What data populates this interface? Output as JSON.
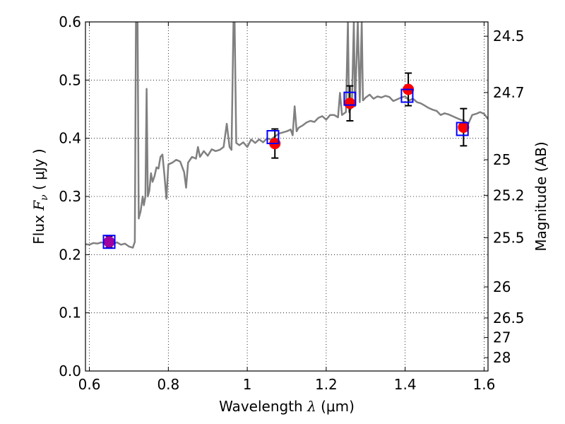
{
  "chart_data": {
    "type": "line",
    "xlabel_prefix": "Wavelength ",
    "xlabel_math": "λ",
    "xlabel_units": " (μm)",
    "ylabel_prefix": "Flux ",
    "ylabel_math": "F",
    "ylabel_sub": "ν",
    "ylabel_units": " ( μJy )",
    "y2label": "Magnitude (AB)",
    "xlim": [
      0.59,
      1.61
    ],
    "ylim": [
      0.0,
      0.6
    ],
    "xticks": [
      0.6,
      0.8,
      1.0,
      1.2,
      1.4,
      1.6
    ],
    "xtick_labels": [
      "0.6",
      "0.8",
      "1",
      "1.2",
      "1.4",
      "1.6"
    ],
    "yticks": [
      0.0,
      0.1,
      0.2,
      0.3,
      0.4,
      0.5,
      0.6
    ],
    "ytick_labels": [
      "0.0",
      "0.1",
      "0.2",
      "0.3",
      "0.4",
      "0.5",
      "0.6"
    ],
    "mag_ticks": [
      24.5,
      24.7,
      25,
      25.2,
      25.5,
      26,
      26.5,
      27,
      28
    ],
    "mag_tick_labels": [
      "24.5",
      "24.7",
      "25",
      "25.2",
      "25.5",
      "26",
      "26.5",
      "27",
      "28"
    ],
    "grid": true,
    "model_color": "#808080",
    "model_spectrum": [
      [
        0.59,
        0.218
      ],
      [
        0.6,
        0.217
      ],
      [
        0.61,
        0.22
      ],
      [
        0.62,
        0.219
      ],
      [
        0.63,
        0.221
      ],
      [
        0.64,
        0.22
      ],
      [
        0.65,
        0.222
      ],
      [
        0.66,
        0.219
      ],
      [
        0.67,
        0.221
      ],
      [
        0.68,
        0.217
      ],
      [
        0.69,
        0.219
      ],
      [
        0.7,
        0.214
      ],
      [
        0.71,
        0.212
      ],
      [
        0.715,
        0.222
      ],
      [
        0.718,
        0.6
      ],
      [
        0.722,
        0.6
      ],
      [
        0.725,
        0.262
      ],
      [
        0.73,
        0.275
      ],
      [
        0.735,
        0.3
      ],
      [
        0.738,
        0.285
      ],
      [
        0.742,
        0.3
      ],
      [
        0.745,
        0.485
      ],
      [
        0.748,
        0.3
      ],
      [
        0.752,
        0.31
      ],
      [
        0.756,
        0.34
      ],
      [
        0.76,
        0.325
      ],
      [
        0.765,
        0.335
      ],
      [
        0.77,
        0.35
      ],
      [
        0.775,
        0.348
      ],
      [
        0.78,
        0.368
      ],
      [
        0.785,
        0.372
      ],
      [
        0.79,
        0.337
      ],
      [
        0.795,
        0.296
      ],
      [
        0.8,
        0.355
      ],
      [
        0.81,
        0.358
      ],
      [
        0.82,
        0.363
      ],
      [
        0.83,
        0.36
      ],
      [
        0.84,
        0.342
      ],
      [
        0.845,
        0.315
      ],
      [
        0.85,
        0.358
      ],
      [
        0.86,
        0.368
      ],
      [
        0.87,
        0.365
      ],
      [
        0.875,
        0.385
      ],
      [
        0.88,
        0.368
      ],
      [
        0.89,
        0.378
      ],
      [
        0.9,
        0.37
      ],
      [
        0.91,
        0.381
      ],
      [
        0.92,
        0.378
      ],
      [
        0.93,
        0.38
      ],
      [
        0.94,
        0.385
      ],
      [
        0.948,
        0.425
      ],
      [
        0.955,
        0.385
      ],
      [
        0.96,
        0.38
      ],
      [
        0.965,
        0.6
      ],
      [
        0.968,
        0.6
      ],
      [
        0.972,
        0.392
      ],
      [
        0.98,
        0.388
      ],
      [
        0.99,
        0.393
      ],
      [
        1.0,
        0.385
      ],
      [
        1.01,
        0.398
      ],
      [
        1.02,
        0.392
      ],
      [
        1.03,
        0.398
      ],
      [
        1.04,
        0.393
      ],
      [
        1.05,
        0.4
      ],
      [
        1.06,
        0.398
      ],
      [
        1.07,
        0.403
      ],
      [
        1.08,
        0.408
      ],
      [
        1.09,
        0.41
      ],
      [
        1.1,
        0.412
      ],
      [
        1.11,
        0.415
      ],
      [
        1.115,
        0.405
      ],
      [
        1.12,
        0.455
      ],
      [
        1.125,
        0.412
      ],
      [
        1.13,
        0.418
      ],
      [
        1.14,
        0.422
      ],
      [
        1.15,
        0.427
      ],
      [
        1.16,
        0.43
      ],
      [
        1.17,
        0.428
      ],
      [
        1.18,
        0.435
      ],
      [
        1.19,
        0.438
      ],
      [
        1.2,
        0.432
      ],
      [
        1.21,
        0.44
      ],
      [
        1.22,
        0.44
      ],
      [
        1.23,
        0.436
      ],
      [
        1.235,
        0.478
      ],
      [
        1.24,
        0.44
      ],
      [
        1.25,
        0.445
      ],
      [
        1.255,
        0.6
      ],
      [
        1.258,
        0.445
      ],
      [
        1.265,
        0.455
      ],
      [
        1.27,
        0.6
      ],
      [
        1.273,
        0.455
      ],
      [
        1.28,
        0.6
      ],
      [
        1.285,
        0.462
      ],
      [
        1.29,
        0.6
      ],
      [
        1.293,
        0.465
      ],
      [
        1.3,
        0.47
      ],
      [
        1.31,
        0.475
      ],
      [
        1.32,
        0.468
      ],
      [
        1.33,
        0.472
      ],
      [
        1.34,
        0.47
      ],
      [
        1.35,
        0.473
      ],
      [
        1.36,
        0.471
      ],
      [
        1.37,
        0.464
      ],
      [
        1.38,
        0.467
      ],
      [
        1.39,
        0.47
      ],
      [
        1.4,
        0.472
      ],
      [
        1.41,
        0.465
      ],
      [
        1.42,
        0.468
      ],
      [
        1.43,
        0.462
      ],
      [
        1.44,
        0.46
      ],
      [
        1.45,
        0.456
      ],
      [
        1.46,
        0.452
      ],
      [
        1.47,
        0.449
      ],
      [
        1.48,
        0.447
      ],
      [
        1.49,
        0.44
      ],
      [
        1.5,
        0.443
      ],
      [
        1.51,
        0.441
      ],
      [
        1.52,
        0.438
      ],
      [
        1.53,
        0.435
      ],
      [
        1.54,
        0.432
      ],
      [
        1.55,
        0.43
      ],
      [
        1.56,
        0.425
      ],
      [
        1.57,
        0.44
      ],
      [
        1.58,
        0.442
      ],
      [
        1.59,
        0.445
      ],
      [
        1.6,
        0.442
      ],
      [
        1.61,
        0.433
      ]
    ],
    "model_bands": [
      {
        "x": 0.65,
        "y": 0.222
      },
      {
        "x": 1.065,
        "y": 0.402
      },
      {
        "x": 1.26,
        "y": 0.468
      },
      {
        "x": 1.405,
        "y": 0.473
      },
      {
        "x": 1.545,
        "y": 0.416
      }
    ],
    "observed": [
      {
        "x": 0.65,
        "y": 0.222,
        "err": 0.01,
        "color": "#a000a0"
      },
      {
        "x": 1.07,
        "y": 0.391,
        "err": 0.025,
        "color": "#ff0000"
      },
      {
        "x": 1.26,
        "y": 0.46,
        "err": 0.03,
        "color": "#ff0000"
      },
      {
        "x": 1.408,
        "y": 0.484,
        "err": 0.028,
        "color": "#ff0000"
      },
      {
        "x": 1.548,
        "y": 0.419,
        "err": 0.032,
        "color": "#ff0000"
      }
    ],
    "band_color": "#0000ff",
    "errbar_color": "#000000"
  }
}
